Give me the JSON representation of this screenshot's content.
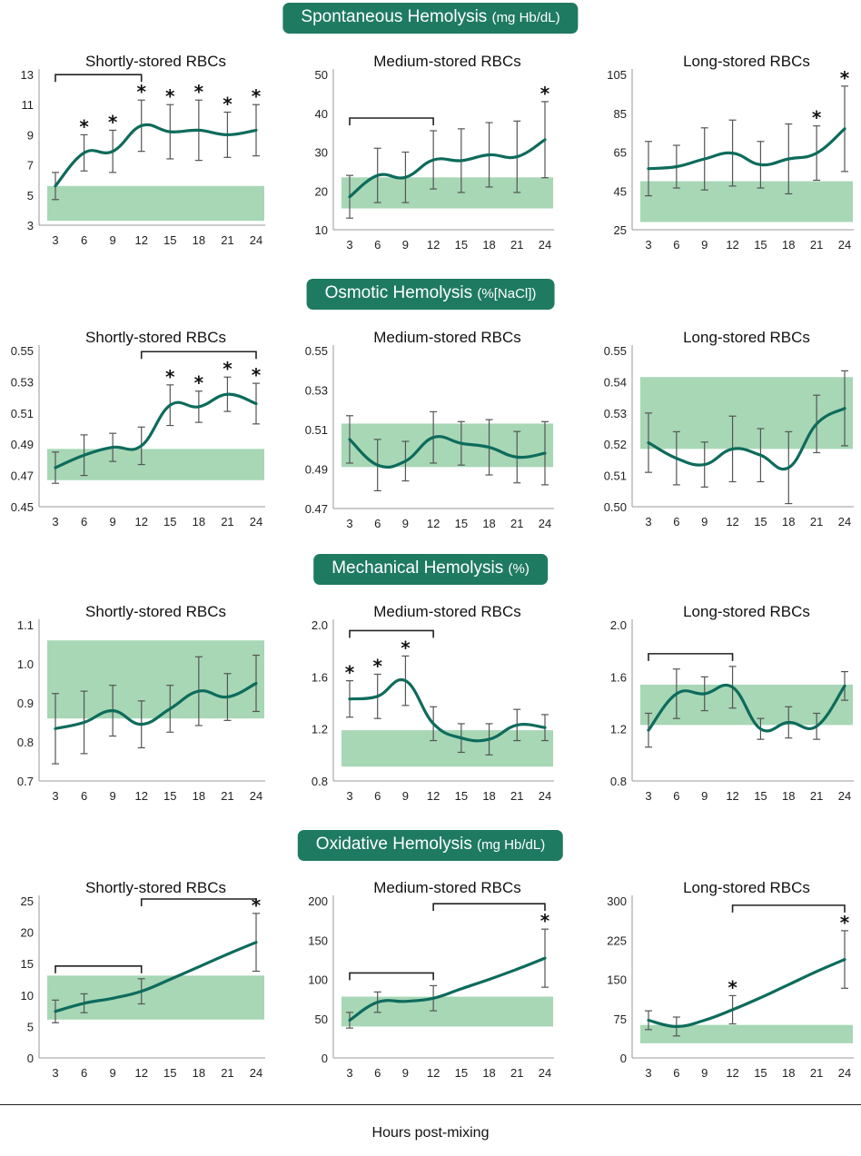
{
  "sections": [
    {
      "title": "Spontaneous Hemolysis",
      "unit": "(mg Hb/dL)"
    },
    {
      "title": "Osmotic Hemolysis",
      "unit": "(%[NaCl])"
    },
    {
      "title": "Mechanical Hemolysis",
      "unit": "(%)"
    },
    {
      "title": "Oxidative Hemolysis",
      "unit": "(mg Hb/dL)"
    }
  ],
  "x_axis_label": "Hours post-mixing",
  "colors": {
    "line": "#0d6b5c",
    "band": "#a7d7b5",
    "title_bg": "#1f7a62",
    "error_bar": "#555555"
  },
  "chart_data": [
    {
      "type": "line",
      "section": 0,
      "title": "Shortly-stored RBCs",
      "x": [
        3,
        6,
        9,
        12,
        15,
        18,
        21,
        24
      ],
      "values": [
        5.6,
        7.8,
        7.9,
        9.6,
        9.2,
        9.3,
        9.0,
        9.3
      ],
      "errors": [
        0.9,
        1.2,
        1.4,
        1.7,
        1.8,
        2.0,
        1.5,
        1.7
      ],
      "band": [
        3.3,
        5.6
      ],
      "ylim": [
        3,
        13
      ],
      "yticks": [
        "3",
        "5",
        "7",
        "9",
        "11",
        "13"
      ],
      "stars_at": [
        6,
        9,
        12,
        15,
        18,
        21,
        24
      ],
      "brackets": [
        [
          3,
          12
        ]
      ]
    },
    {
      "type": "line",
      "section": 0,
      "title": "Medium-stored RBCs",
      "x": [
        3,
        6,
        9,
        12,
        15,
        18,
        21,
        24
      ],
      "values": [
        18.5,
        24.0,
        23.5,
        28.0,
        27.8,
        29.3,
        28.8,
        33.2
      ],
      "errors": [
        5.5,
        7.0,
        6.5,
        7.5,
        8.2,
        8.3,
        9.2,
        9.8
      ],
      "band": [
        15.5,
        23.5
      ],
      "ylim": [
        10,
        50
      ],
      "yticks": [
        "10",
        "20",
        "30",
        "40",
        "50"
      ],
      "stars_at": [
        24
      ],
      "brackets": [
        [
          3,
          12
        ]
      ]
    },
    {
      "type": "line",
      "section": 0,
      "title": "Long-stored RBCs",
      "x": [
        3,
        6,
        9,
        12,
        15,
        18,
        21,
        24
      ],
      "values": [
        56.5,
        57.5,
        61.5,
        64.5,
        58.5,
        61.5,
        64.5,
        77.0
      ],
      "errors": [
        14,
        11,
        16,
        17,
        12,
        18,
        14,
        22
      ],
      "band": [
        29,
        50
      ],
      "ylim": [
        25,
        105
      ],
      "yticks": [
        "25",
        "45",
        "65",
        "85",
        "105"
      ],
      "stars_at": [
        21,
        24
      ],
      "brackets": []
    },
    {
      "type": "line",
      "section": 1,
      "title": "Shortly-stored RBCs",
      "x": [
        3,
        6,
        9,
        12,
        15,
        18,
        21,
        24
      ],
      "values": [
        0.475,
        0.483,
        0.488,
        0.489,
        0.515,
        0.514,
        0.522,
        0.516
      ],
      "errors": [
        0.01,
        0.013,
        0.009,
        0.012,
        0.013,
        0.01,
        0.011,
        0.013
      ],
      "band": [
        0.467,
        0.487
      ],
      "ylim": [
        0.45,
        0.55
      ],
      "yticks": [
        "0.45",
        "0.47",
        "0.49",
        "0.51",
        "0.53",
        "0.55"
      ],
      "stars_at": [
        15,
        18,
        21,
        24
      ],
      "brackets": [
        [
          12,
          24
        ]
      ]
    },
    {
      "type": "line",
      "section": 1,
      "title": "Medium-stored RBCs",
      "x": [
        3,
        6,
        9,
        12,
        15,
        18,
        21,
        24
      ],
      "values": [
        0.505,
        0.492,
        0.494,
        0.506,
        0.503,
        0.501,
        0.496,
        0.498
      ],
      "errors": [
        0.012,
        0.013,
        0.01,
        0.013,
        0.011,
        0.014,
        0.013,
        0.016
      ],
      "band": [
        0.491,
        0.513
      ],
      "ylim": [
        0.47,
        0.55
      ],
      "yticks": [
        "0.47",
        "0.49",
        "0.51",
        "0.53",
        "0.55"
      ],
      "stars_at": [],
      "brackets": []
    },
    {
      "type": "line",
      "section": 1,
      "title": "Long-stored RBCs",
      "x": [
        3,
        6,
        9,
        12,
        15,
        18,
        21,
        24
      ],
      "values": [
        0.5205,
        0.5155,
        0.5135,
        0.5185,
        0.5165,
        0.5125,
        0.5265,
        0.5315
      ],
      "errors": [
        0.0095,
        0.0085,
        0.0072,
        0.0105,
        0.0085,
        0.0115,
        0.0092,
        0.012
      ],
      "band": [
        0.5185,
        0.5415
      ],
      "ylim": [
        0.5,
        0.55
      ],
      "yticks": [
        "0.50",
        "0.51",
        "0.52",
        "0.53",
        "0.54",
        "0.55"
      ],
      "stars_at": [],
      "brackets": []
    },
    {
      "type": "line",
      "section": 2,
      "title": "Shortly-stored RBCs",
      "x": [
        3,
        6,
        9,
        12,
        15,
        18,
        21,
        24
      ],
      "values": [
        0.834,
        0.85,
        0.88,
        0.845,
        0.885,
        0.93,
        0.915,
        0.95
      ],
      "errors": [
        0.09,
        0.08,
        0.065,
        0.06,
        0.06,
        0.088,
        0.06,
        0.072
      ],
      "band": [
        0.86,
        1.06
      ],
      "ylim": [
        0.7,
        1.1
      ],
      "yticks": [
        "0.7",
        "0.8",
        "0.9",
        "1.0",
        "1.1"
      ],
      "stars_at": [],
      "brackets": []
    },
    {
      "type": "line",
      "section": 2,
      "title": "Medium-stored RBCs",
      "x": [
        3,
        6,
        9,
        12,
        15,
        18,
        21,
        24
      ],
      "values": [
        1.43,
        1.45,
        1.57,
        1.24,
        1.13,
        1.12,
        1.23,
        1.21
      ],
      "errors": [
        0.14,
        0.17,
        0.19,
        0.13,
        0.11,
        0.12,
        0.12,
        0.1
      ],
      "band": [
        0.91,
        1.19
      ],
      "ylim": [
        0.8,
        2.0
      ],
      "yticks": [
        "0.8",
        "1.2",
        "1.6",
        "2.0"
      ],
      "stars_at": [
        3,
        6,
        9
      ],
      "brackets": [
        [
          3,
          12
        ]
      ]
    },
    {
      "type": "line",
      "section": 2,
      "title": "Long-stored RBCs",
      "x": [
        3,
        6,
        9,
        12,
        15,
        18,
        21,
        24
      ],
      "values": [
        1.19,
        1.47,
        1.47,
        1.52,
        1.2,
        1.25,
        1.22,
        1.53
      ],
      "errors": [
        0.13,
        0.19,
        0.13,
        0.16,
        0.08,
        0.12,
        0.1,
        0.11
      ],
      "band": [
        1.23,
        1.54
      ],
      "ylim": [
        0.8,
        2.0
      ],
      "yticks": [
        "0.8",
        "1.2",
        "1.6",
        "2.0"
      ],
      "stars_at": [],
      "brackets": [
        [
          3,
          12
        ]
      ]
    },
    {
      "type": "line",
      "section": 3,
      "title": "Shortly-stored RBCs",
      "x": [
        3,
        6,
        9,
        12,
        15,
        18,
        21,
        24
      ],
      "values": [
        7.4,
        8.7,
        9.5,
        10.6,
        12.5,
        14.5,
        16.5,
        18.4
      ],
      "errors": [
        1.8,
        1.5,
        null,
        2.0,
        null,
        null,
        null,
        4.6
      ],
      "band": [
        6.1,
        13.1
      ],
      "ylim": [
        0,
        25
      ],
      "yticks": [
        "0",
        "5",
        "10",
        "15",
        "20",
        "25"
      ],
      "stars_at": [
        24
      ],
      "brackets": [
        [
          3,
          12
        ],
        [
          12,
          24
        ]
      ]
    },
    {
      "type": "line",
      "section": 3,
      "title": "Medium-stored RBCs",
      "x": [
        3,
        6,
        9,
        12,
        15,
        18,
        21,
        24
      ],
      "values": [
        48,
        71,
        72,
        76,
        88,
        100,
        113,
        127
      ],
      "errors": [
        10,
        13,
        null,
        16,
        null,
        null,
        null,
        37
      ],
      "band": [
        40,
        78
      ],
      "ylim": [
        0,
        200
      ],
      "yticks": [
        "0",
        "50",
        "100",
        "150",
        "200"
      ],
      "stars_at": [
        24
      ],
      "brackets": [
        [
          3,
          12
        ],
        [
          12,
          24
        ]
      ]
    },
    {
      "type": "line",
      "section": 3,
      "title": "Long-stored RBCs",
      "x": [
        3,
        6,
        9,
        12,
        15,
        18,
        21,
        24
      ],
      "values": [
        72,
        60,
        72,
        92,
        115,
        140,
        165,
        188
      ],
      "errors": [
        18,
        18,
        null,
        27,
        null,
        null,
        null,
        55
      ],
      "band": [
        28,
        63
      ],
      "ylim": [
        0,
        300
      ],
      "yticks": [
        "0",
        "75",
        "150",
        "225",
        "300"
      ],
      "stars_at": [
        12,
        24
      ],
      "brackets": [
        [
          12,
          24
        ]
      ]
    }
  ]
}
